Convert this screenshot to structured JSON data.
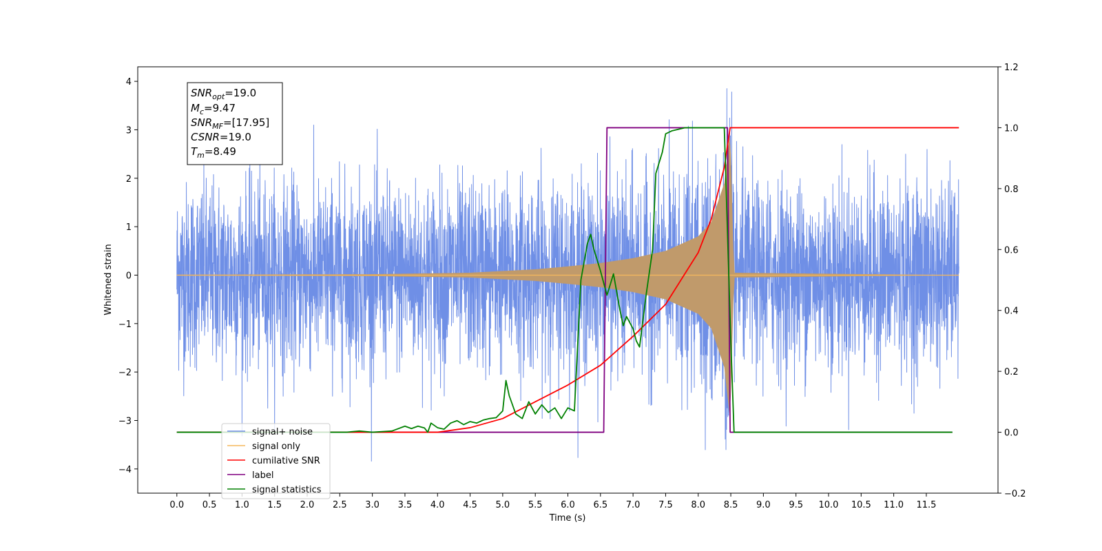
{
  "chart_data": {
    "type": "line",
    "title": "",
    "xlabel": "Time (s)",
    "ylabel": "Whitened strain",
    "y2label": "",
    "xlim": [
      -0.6,
      12.6
    ],
    "ylim": [
      -4.5,
      4.3
    ],
    "y2lim": [
      -0.2,
      1.2
    ],
    "x_ticks": [
      "0.0",
      "0.5",
      "1.0",
      "1.5",
      "2.0",
      "2.5",
      "3.0",
      "3.5",
      "4.0",
      "4.5",
      "5.0",
      "5.5",
      "6.0",
      "6.5",
      "7.0",
      "7.5",
      "8.0",
      "8.5",
      "9.0",
      "9.5",
      "10.0",
      "10.5",
      "11.0",
      "11.5"
    ],
    "y_ticks": [
      "4",
      "3",
      "2",
      "1",
      "0",
      "−1",
      "−2",
      "−3",
      "−4"
    ],
    "y2_ticks": [
      "1.2",
      "1.0",
      "0.8",
      "0.6",
      "0.4",
      "0.2",
      "0.0",
      "−0.2"
    ],
    "grid": false,
    "legend_position": "lower-left",
    "annotation_lines": [
      {
        "var": "SNR",
        "sub": "opt",
        "value": "=19.0"
      },
      {
        "var": "M",
        "sub": "c",
        "value": "=9.47"
      },
      {
        "var": "SNR",
        "sub": "MF",
        "value": "=[17.95]"
      },
      {
        "var": "CSNR",
        "sub": "",
        "value": "=19.0"
      },
      {
        "var": "T",
        "sub": "m",
        "value": "=8.49"
      }
    ],
    "series": [
      {
        "name": "signal+ noise",
        "axis": "left",
        "color": "#6f8fe6",
        "duration": 12.0,
        "noise_sigma": 0.95,
        "noise_min": -4.1,
        "noise_max": 3.85
      },
      {
        "name": "signal only",
        "axis": "left",
        "color": "#f5b85c",
        "fill_color": "#c09a6b",
        "envelope": {
          "x": [
            0.0,
            3.0,
            4.5,
            5.5,
            6.0,
            6.5,
            7.0,
            7.5,
            8.0,
            8.2,
            8.4,
            8.49,
            8.55,
            12.0
          ],
          "y": [
            0.01,
            0.02,
            0.05,
            0.12,
            0.18,
            0.25,
            0.35,
            0.5,
            0.8,
            1.1,
            1.9,
            3.0,
            0.05,
            0.0
          ]
        }
      },
      {
        "name": "cumilative SNR",
        "axis": "right",
        "color": "#ff0000",
        "x": [
          0.0,
          4.0,
          4.5,
          5.0,
          5.5,
          6.0,
          6.5,
          7.0,
          7.5,
          8.0,
          8.2,
          8.4,
          8.49,
          8.5,
          12.0
        ],
        "y": [
          0.0,
          0.0,
          0.015,
          0.045,
          0.1,
          0.155,
          0.22,
          0.315,
          0.42,
          0.59,
          0.7,
          0.87,
          1.0,
          1.0,
          1.0
        ]
      },
      {
        "name": "label",
        "axis": "right",
        "color": "#800080",
        "x": [
          0.0,
          6.55,
          6.6,
          8.45,
          8.49,
          11.9
        ],
        "y": [
          0.0,
          0.0,
          1.0,
          1.0,
          0.0,
          0.0
        ]
      },
      {
        "name": "signal statistics",
        "axis": "right",
        "color": "#008000",
        "x": [
          0.0,
          2.6,
          2.8,
          3.0,
          3.3,
          3.5,
          3.6,
          3.7,
          3.8,
          3.85,
          3.9,
          4.0,
          4.1,
          4.2,
          4.3,
          4.4,
          4.5,
          4.6,
          4.7,
          4.8,
          4.9,
          5.0,
          5.05,
          5.1,
          5.2,
          5.3,
          5.4,
          5.5,
          5.6,
          5.7,
          5.8,
          5.9,
          6.0,
          6.1,
          6.2,
          6.3,
          6.35,
          6.4,
          6.5,
          6.6,
          6.7,
          6.8,
          6.85,
          6.9,
          7.0,
          7.05,
          7.1,
          7.2,
          7.3,
          7.35,
          7.45,
          7.5,
          7.6,
          7.8,
          8.0,
          8.2,
          8.4,
          8.5,
          8.55,
          8.6,
          11.9
        ],
        "y": [
          0.0,
          0.0,
          0.004,
          0.0,
          0.004,
          0.02,
          0.012,
          0.02,
          0.014,
          0.0,
          0.03,
          0.015,
          0.01,
          0.03,
          0.038,
          0.025,
          0.035,
          0.03,
          0.04,
          0.045,
          0.048,
          0.07,
          0.17,
          0.12,
          0.06,
          0.045,
          0.1,
          0.06,
          0.09,
          0.065,
          0.08,
          0.045,
          0.08,
          0.07,
          0.5,
          0.62,
          0.65,
          0.6,
          0.53,
          0.45,
          0.52,
          0.4,
          0.35,
          0.38,
          0.34,
          0.3,
          0.28,
          0.45,
          0.6,
          0.85,
          0.92,
          0.98,
          0.99,
          1.0,
          1.0,
          1.0,
          1.0,
          0.3,
          0.0,
          0.0,
          0.0
        ]
      }
    ]
  }
}
